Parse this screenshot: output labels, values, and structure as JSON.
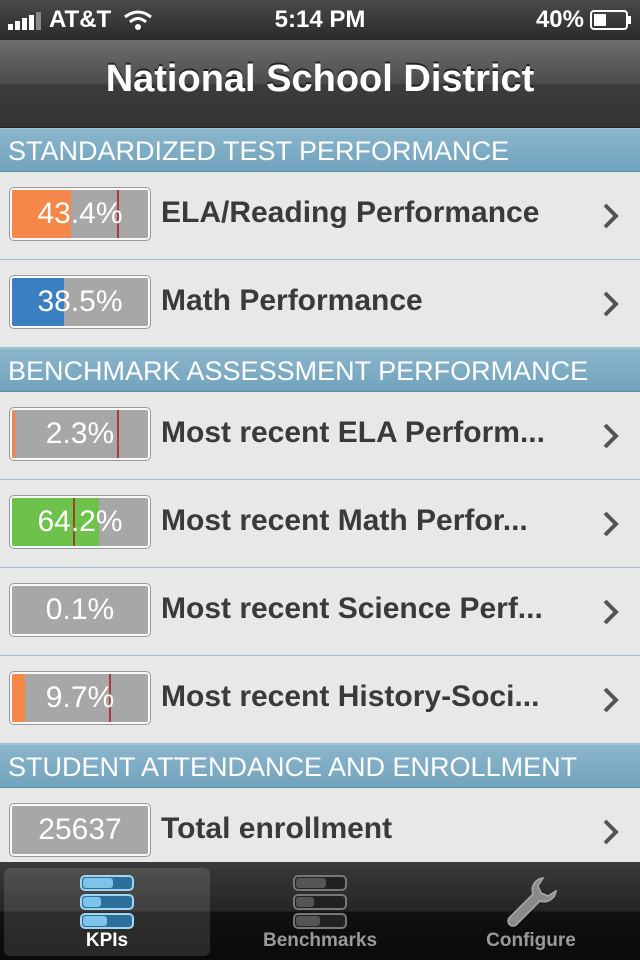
{
  "status_bar": {
    "carrier": "AT&T",
    "time": "5:14 PM",
    "battery": "40%",
    "battery_level": 0.4
  },
  "nav": {
    "title": "National School District"
  },
  "sections": [
    {
      "header": "STANDARDIZED TEST PERFORMANCE",
      "rows": [
        {
          "value": "43.4%",
          "label": "ELA/Reading Performance",
          "fill": 0.434,
          "marker": 0.77,
          "color": "#f5874a"
        },
        {
          "value": "38.5%",
          "label": "Math Performance",
          "fill": 0.385,
          "marker": null,
          "color": "#3a7fc1"
        }
      ]
    },
    {
      "header": "BENCHMARK ASSESSMENT PERFORMANCE",
      "rows": [
        {
          "value": "2.3%",
          "label": "Most recent ELA Perform...",
          "fill": 0.023,
          "marker": 0.77,
          "color": "#f5874a"
        },
        {
          "value": "64.2%",
          "label": "Most recent Math Perfor...",
          "fill": 0.642,
          "marker": 0.45,
          "color": "#6cc24a"
        },
        {
          "value": "0.1%",
          "label": "Most recent Science Perf...",
          "fill": 0.0,
          "marker": null,
          "color": "#a7a7a7"
        },
        {
          "value": "9.7%",
          "label": "Most recent History-Soci...",
          "fill": 0.097,
          "marker": 0.71,
          "color": "#f5874a"
        }
      ]
    },
    {
      "header": "STUDENT ATTENDANCE AND ENROLLMENT",
      "rows": [
        {
          "value": "25637",
          "label": "Total enrollment",
          "fill": 0.0,
          "marker": null,
          "color": "#a7a7a7"
        }
      ]
    }
  ],
  "tabs": [
    {
      "label": "KPIs",
      "icon": "kpi-bars-icon",
      "active": true
    },
    {
      "label": "Benchmarks",
      "icon": "benchmark-bars-icon",
      "active": false
    },
    {
      "label": "Configure",
      "icon": "wrench-icon",
      "active": false
    }
  ]
}
